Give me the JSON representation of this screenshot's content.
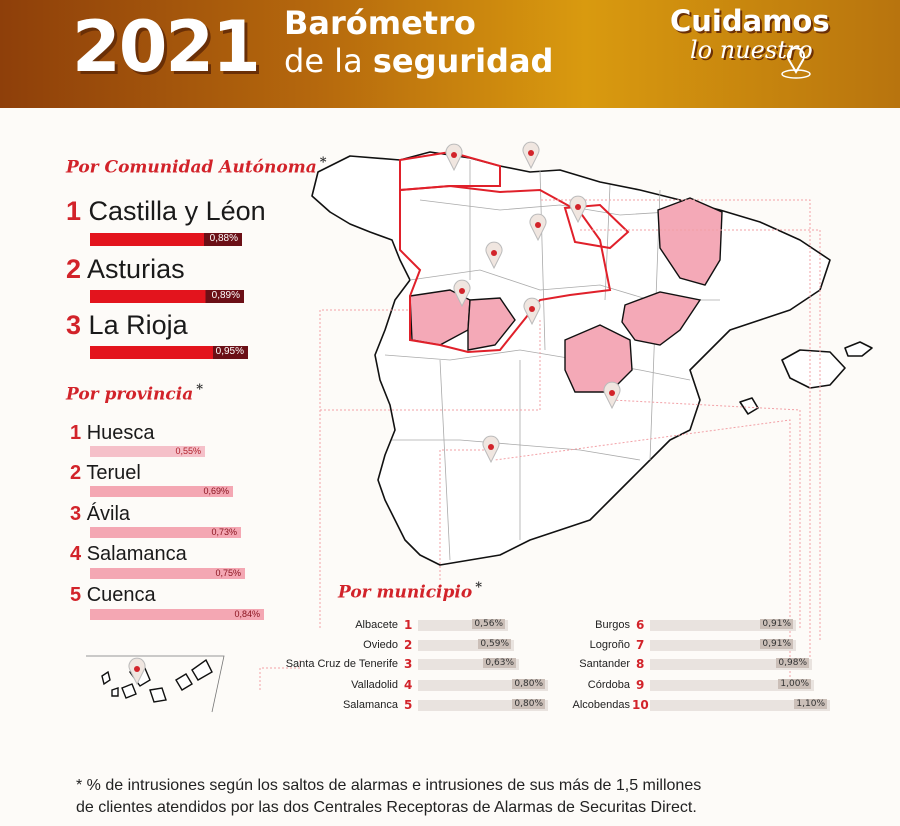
{
  "header": {
    "year": "2021",
    "title_line1": "Barómetro",
    "title_line2_light": "de la",
    "title_line2_bold": "seguridad",
    "brand_line1": "Cuidamos",
    "brand_line2": "lo nuestro"
  },
  "colors": {
    "accent_red": "#d2232a",
    "header_brown": "#8e3f0a",
    "header_gold": "#d99a0f",
    "highlight_pink": "#f2a8b6",
    "region_bar_dark": "#6b0f16",
    "province_bar": "#f4a7b3"
  },
  "comunidad": {
    "title": "Por Comunidad Autónoma",
    "asterisk": "*",
    "items": [
      {
        "num": "1",
        "name": "Castilla y Léon",
        "value": "0,88%",
        "pct": 0.88
      },
      {
        "num": "2",
        "name": "Asturias",
        "value": "0,89%",
        "pct": 0.89
      },
      {
        "num": "3",
        "name": "La Rioja",
        "value": "0,95%",
        "pct": 0.95
      }
    ]
  },
  "provincia": {
    "title": "Por provincia",
    "asterisk": "*",
    "items": [
      {
        "num": "1",
        "name": "Huesca",
        "value": "0,55%",
        "pct": 0.55
      },
      {
        "num": "2",
        "name": "Teruel",
        "value": "0,69%",
        "pct": 0.69
      },
      {
        "num": "3",
        "name": "Ávila",
        "value": "0,73%",
        "pct": 0.73
      },
      {
        "num": "4",
        "name": "Salamanca",
        "value": "0,75%",
        "pct": 0.75
      },
      {
        "num": "5",
        "name": "Cuenca",
        "value": "0,84%",
        "pct": 0.84
      }
    ]
  },
  "municipio": {
    "title": "Por municipio",
    "asterisk": "*",
    "left": [
      {
        "name": "Albacete",
        "num": "1",
        "value": "0,56%",
        "pct": 0.56
      },
      {
        "name": "Oviedo",
        "num": "2",
        "value": "0,59%",
        "pct": 0.59
      },
      {
        "name": "Santa Cruz de Tenerife",
        "num": "3",
        "value": "0,63%",
        "pct": 0.63
      },
      {
        "name": "Valladolid",
        "num": "4",
        "value": "0,80%",
        "pct": 0.8
      },
      {
        "name": "Salamanca",
        "num": "5",
        "value": "0,80%",
        "pct": 0.8
      }
    ],
    "right": [
      {
        "name": "Burgos",
        "num": "6",
        "value": "0,91%",
        "pct": 0.91
      },
      {
        "name": "Logroño",
        "num": "7",
        "value": "0,91%",
        "pct": 0.91
      },
      {
        "name": "Santander",
        "num": "8",
        "value": "0,98%",
        "pct": 0.98
      },
      {
        "name": "Córdoba",
        "num": "9",
        "value": "1,00%",
        "pct": 1.0
      },
      {
        "name": "Alcobendas",
        "num": "10",
        "value": "1,10%",
        "pct": 1.1
      }
    ]
  },
  "map": {
    "pin_icon": "map-pin-icon",
    "highlighted_regions": [
      "Castilla y León",
      "Asturias",
      "La Rioja"
    ],
    "highlighted_provinces": [
      "Huesca",
      "Teruel",
      "Ávila",
      "Salamanca",
      "Cuenca"
    ]
  },
  "footnote": {
    "line1": "* % de intrusiones según los saltos de alarmas e intrusiones de sus más de 1,5 millones",
    "line2": "de clientes atendidos por las dos Centrales Receptoras de Alarmas de Securitas Direct."
  }
}
